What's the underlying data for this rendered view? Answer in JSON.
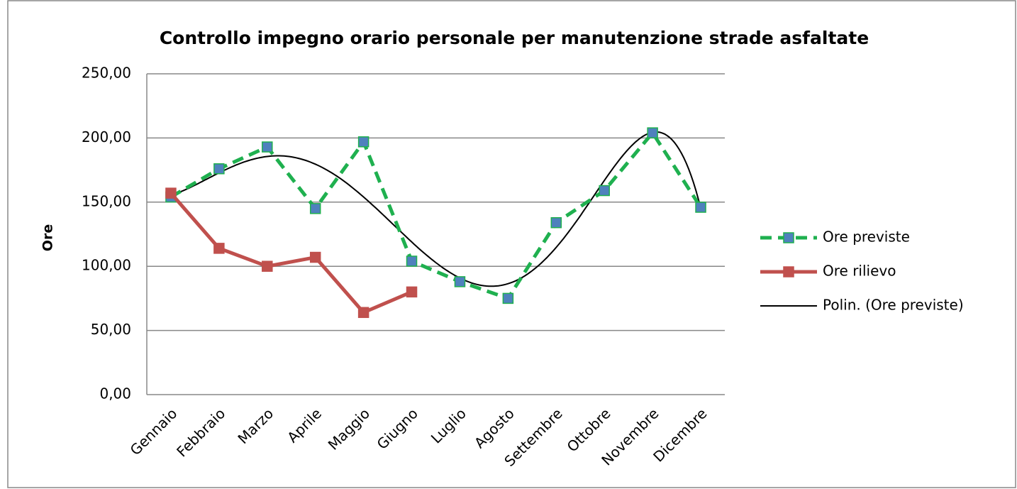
{
  "chart_data": {
    "type": "line",
    "title": "Controllo impegno orario personale per manutenzione strade asfaltate",
    "y_label": "Ore",
    "categories": [
      "Gennaio",
      "Febbraio",
      "Marzo",
      "Aprile",
      "Maggio",
      "Giugno",
      "Luglio",
      "Agosto",
      "Settembre",
      "Ottobre",
      "Novembre",
      "Dicembre"
    ],
    "series": [
      {
        "name": "Ore previste",
        "color": "#1fb04f",
        "marker_color": "#4f81bd",
        "dashed": true,
        "values": [
          154,
          176,
          193,
          145,
          197,
          104,
          88,
          75,
          134,
          159,
          204,
          146
        ]
      },
      {
        "name": "Ore rilievo",
        "color": "#c0504d",
        "marker_color": "#c0504d",
        "dashed": false,
        "values": [
          157,
          114,
          100,
          107,
          64,
          80,
          null,
          null,
          null,
          null,
          null,
          null
        ]
      }
    ],
    "trendline": {
      "name": "Polin. (Ore previste)",
      "series": 0,
      "order": 6,
      "color": "#000000"
    },
    "ylim": [
      0,
      250
    ],
    "yticks": [
      {
        "value": 0,
        "label": "0,00"
      },
      {
        "value": 50,
        "label": "50,00"
      },
      {
        "value": 100,
        "label": "100,00"
      },
      {
        "value": 150,
        "label": "150,00"
      },
      {
        "value": 200,
        "label": "200,00"
      },
      {
        "value": 250,
        "label": "250,00"
      }
    ],
    "grid": true,
    "legend": "right"
  }
}
